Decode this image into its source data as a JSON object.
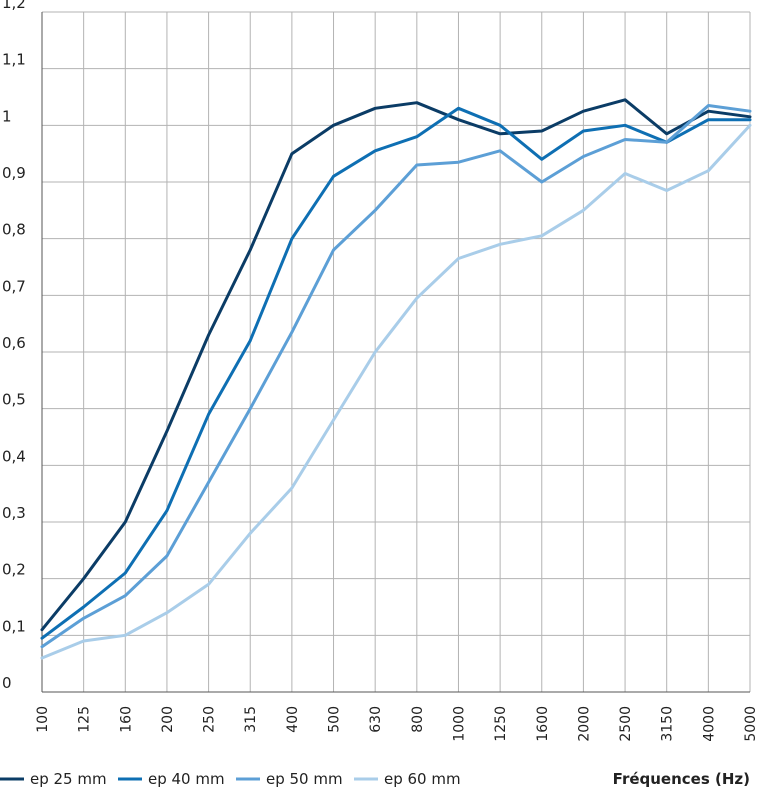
{
  "chart_data": {
    "type": "line",
    "title": "",
    "xlabel": "Fréquences (Hz)",
    "ylabel": "",
    "categories": [
      "100",
      "125",
      "160",
      "200",
      "250",
      "315",
      "400",
      "500",
      "630",
      "800",
      "1000",
      "1250",
      "1600",
      "2000",
      "2500",
      "3150",
      "4000",
      "5000"
    ],
    "ylim": [
      0,
      1.2
    ],
    "yticks": [
      0,
      0.1,
      0.2,
      0.3,
      0.4,
      0.5,
      0.6,
      0.7,
      0.8,
      0.9,
      1,
      1.1,
      1.2
    ],
    "ytick_labels": [
      "0",
      "0,1",
      "0,2",
      "0,3",
      "0,4",
      "0,5",
      "0,6",
      "0,7",
      "0,8",
      "0,9",
      "1",
      "1,1",
      "1,2"
    ],
    "grid": true,
    "legend_position": "bottom-left",
    "series": [
      {
        "name": "ep 25 mm",
        "color": "#0b3c66",
        "values": [
          0.11,
          0.2,
          0.3,
          0.46,
          0.63,
          0.78,
          0.95,
          1.0,
          1.03,
          1.04,
          1.01,
          0.985,
          0.99,
          1.025,
          1.045,
          0.985,
          1.025,
          1.015
        ]
      },
      {
        "name": "ep 40 mm",
        "color": "#0e6fb3",
        "values": [
          0.095,
          0.15,
          0.21,
          0.32,
          0.49,
          0.62,
          0.8,
          0.91,
          0.955,
          0.98,
          1.03,
          1.0,
          0.94,
          0.99,
          1.0,
          0.97,
          1.01,
          1.01
        ]
      },
      {
        "name": "ep 50 mm",
        "color": "#5c9fd6",
        "values": [
          0.08,
          0.13,
          0.17,
          0.24,
          0.37,
          0.5,
          0.635,
          0.78,
          0.85,
          0.93,
          0.935,
          0.955,
          0.9,
          0.945,
          0.975,
          0.97,
          1.035,
          1.025
        ]
      },
      {
        "name": "ep 60 mm",
        "color": "#a9cde9",
        "values": [
          0.06,
          0.09,
          0.1,
          0.14,
          0.19,
          0.28,
          0.36,
          0.48,
          0.6,
          0.695,
          0.765,
          0.79,
          0.805,
          0.85,
          0.915,
          0.885,
          0.92,
          1.0
        ]
      }
    ]
  }
}
